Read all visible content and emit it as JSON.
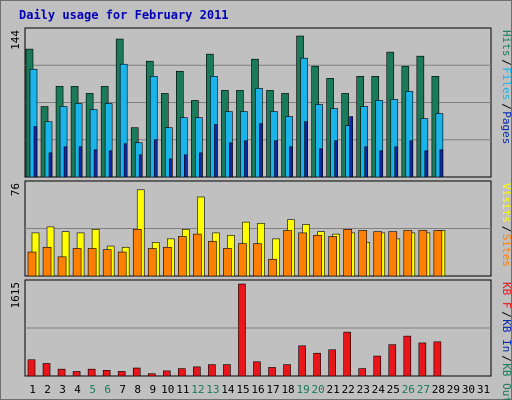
{
  "title": "Daily usage for February 2011",
  "colors": {
    "background": "#c0c0c0",
    "title": "#0000b8",
    "hits": "#1a7a5a",
    "files": "#1ab4ea",
    "pages": "#0a2aa8",
    "visits": "#ffff00",
    "sites": "#ff8000",
    "kbf": "#e8161a",
    "weekend_day": "#1a7a5a",
    "weekday": "#000000",
    "grid": "#808080"
  },
  "chart_data": [
    {
      "type": "bar",
      "name": "hits-files-pages",
      "max_label": "144",
      "ylim": [
        0,
        144
      ],
      "legend": [
        {
          "text": "Hits",
          "color": "#1a7a5a"
        },
        {
          "text": "Files",
          "color": "#1ab4ea"
        },
        {
          "text": "Pages",
          "color": "#0a2aa8"
        }
      ],
      "series": [
        {
          "name": "Hits",
          "values": [
            127,
            70,
            90,
            90,
            83,
            90,
            137,
            49,
            115,
            83,
            105,
            76,
            122,
            86,
            86,
            117,
            86,
            83,
            140,
            110,
            98,
            83,
            100,
            100,
            124,
            110,
            120,
            100
          ]
        },
        {
          "name": "Files",
          "values": [
            107,
            55,
            70,
            73,
            67,
            73,
            112,
            34,
            100,
            49,
            59,
            59,
            100,
            65,
            65,
            88,
            65,
            60,
            118,
            72,
            68,
            51,
            70,
            76,
            77,
            85,
            58,
            63
          ]
        },
        {
          "name": "Pages",
          "values": [
            50,
            24,
            30,
            30,
            27,
            26,
            33,
            22,
            37,
            18,
            22,
            24,
            52,
            34,
            36,
            53,
            36,
            30,
            55,
            28,
            36,
            60,
            30,
            26,
            30,
            36,
            26,
            27
          ]
        }
      ]
    },
    {
      "type": "bar",
      "name": "visits-sites",
      "max_label": "76",
      "ylim": [
        0,
        76
      ],
      "legend": [
        {
          "text": "Visits",
          "color": "#ffff00"
        },
        {
          "text": "Sites",
          "color": "#ff8000"
        }
      ],
      "series": [
        {
          "name": "Visits",
          "values": [
            36,
            41,
            37,
            36,
            39,
            25,
            24,
            72,
            28,
            31,
            39,
            66,
            36,
            34,
            45,
            44,
            31,
            47,
            43,
            37,
            35,
            36,
            28,
            36,
            31,
            36,
            36,
            38
          ]
        },
        {
          "name": "Sites",
          "values": [
            20,
            24,
            16,
            23,
            23,
            22,
            20,
            39,
            23,
            24,
            33,
            35,
            29,
            23,
            27,
            27,
            14,
            38,
            36,
            34,
            33,
            39,
            38,
            37,
            37,
            38,
            38,
            38
          ]
        }
      ]
    },
    {
      "type": "bar",
      "name": "kbytes",
      "max_label": "1615",
      "ylim": [
        0,
        1615
      ],
      "legend": [
        {
          "text": "KB F",
          "color": "#e8161a"
        },
        {
          "text": "KB In",
          "color": "#0a2aa8"
        },
        {
          "text": "KB Out",
          "color": "#1a7a5a"
        }
      ],
      "series": [
        {
          "name": "KB F",
          "values": [
            285,
            220,
            120,
            80,
            120,
            100,
            80,
            140,
            40,
            90,
            130,
            160,
            200,
            200,
            1615,
            250,
            150,
            200,
            530,
            400,
            460,
            770,
            130,
            350,
            550,
            700,
            580,
            600
          ]
        }
      ]
    }
  ],
  "days": [
    "1",
    "2",
    "3",
    "4",
    "5",
    "6",
    "7",
    "8",
    "9",
    "10",
    "11",
    "12",
    "13",
    "14",
    "15",
    "16",
    "17",
    "18",
    "19",
    "20",
    "21",
    "22",
    "23",
    "24",
    "25",
    "26",
    "27",
    "28",
    "29",
    "30",
    "31"
  ],
  "weekend_days": [
    "5",
    "6",
    "12",
    "13",
    "19",
    "20",
    "26",
    "27"
  ]
}
